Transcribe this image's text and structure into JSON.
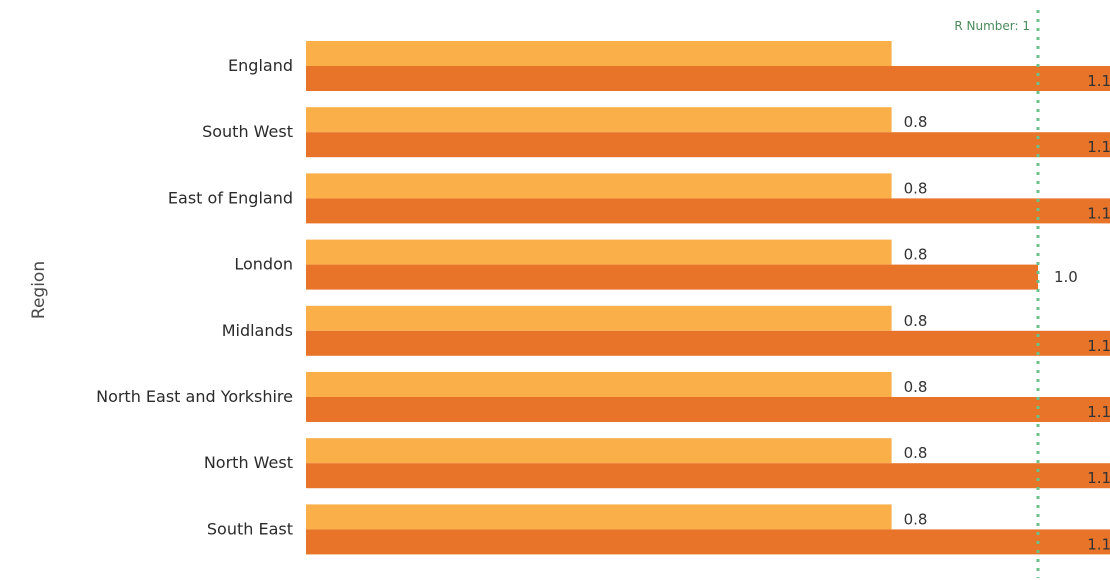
{
  "chart_data": {
    "type": "bar",
    "orientation": "horizontal",
    "ylabel": "Region",
    "categories": [
      "England",
      "South West",
      "East of England",
      "London",
      "Midlands",
      "North East and Yorkshire",
      "North West",
      "South East"
    ],
    "series": [
      {
        "color": "#FBAF49",
        "values": [
          0.8,
          0.8,
          0.8,
          0.8,
          0.8,
          0.8,
          0.8,
          0.8
        ],
        "labels": [
          "",
          "0.8",
          "0.8",
          "0.8",
          "0.8",
          "0.8",
          "0.8",
          "0.8"
        ]
      },
      {
        "color": "#E8742A",
        "values": [
          1.1,
          1.1,
          1.1,
          1.0,
          1.1,
          1.1,
          1.1,
          1.1
        ],
        "labels": [
          "1.1",
          "1.1",
          "1.1",
          "1.0",
          "1.1",
          "1.1",
          "1.1",
          "1.1"
        ]
      }
    ],
    "reference_line": {
      "value": 1,
      "label": "R Number: 1",
      "color": "#6CC08A",
      "style": "dotted"
    },
    "xlim": [
      0,
      1.1
    ],
    "grid": false,
    "legend": "none"
  }
}
